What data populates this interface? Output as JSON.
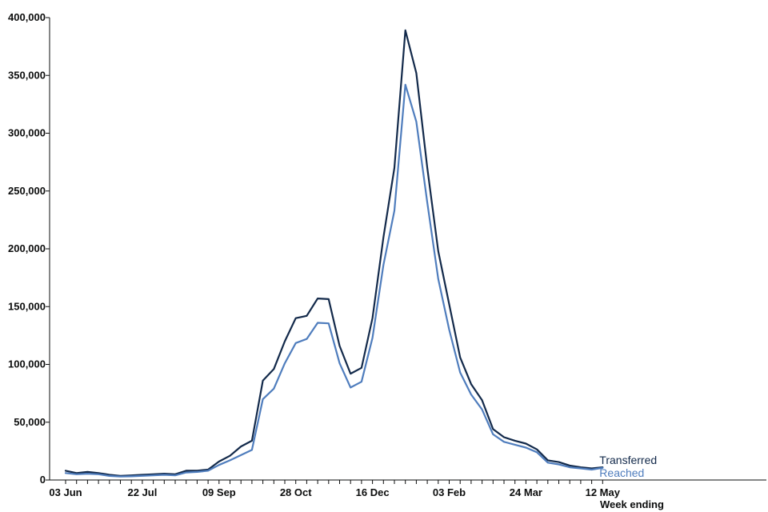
{
  "chart_data": {
    "type": "line",
    "title": "",
    "xlabel": "Week ending",
    "ylabel": "",
    "ylim": [
      0,
      400000
    ],
    "yticks": [
      0,
      50000,
      100000,
      150000,
      200000,
      250000,
      300000,
      350000,
      400000
    ],
    "ytick_labels": [
      "0",
      "50,000",
      "100,000",
      "150,000",
      "200,000",
      "250,000",
      "300,000",
      "350,000",
      "400,000"
    ],
    "xtick_labels": [
      "03 Jun",
      "22 Jul",
      "09 Sep",
      "28 Oct",
      "16 Dec",
      "03 Feb",
      "24 Mar",
      "12 May"
    ],
    "xtick_weeks": [
      0,
      7,
      14,
      21,
      28,
      35,
      42,
      49
    ],
    "legend_position": "end-of-lines",
    "grid": false,
    "x": [
      "03 Jun",
      "10 Jun",
      "17 Jun",
      "24 Jun",
      "01 Jul",
      "08 Jul",
      "15 Jul",
      "22 Jul",
      "29 Jul",
      "05 Aug",
      "12 Aug",
      "19 Aug",
      "26 Aug",
      "02 Sep",
      "09 Sep",
      "16 Sep",
      "23 Sep",
      "30 Sep",
      "07 Oct",
      "14 Oct",
      "21 Oct",
      "28 Oct",
      "04 Nov",
      "11 Nov",
      "18 Nov",
      "25 Nov",
      "02 Dec",
      "09 Dec",
      "16 Dec",
      "23 Dec",
      "30 Dec",
      "06 Jan",
      "13 Jan",
      "20 Jan",
      "27 Jan",
      "03 Feb",
      "10 Feb",
      "17 Feb",
      "24 Feb",
      "03 Mar",
      "10 Mar",
      "17 Mar",
      "24 Mar",
      "31 Mar",
      "07 Apr",
      "14 Apr",
      "21 Apr",
      "28 Apr",
      "05 May",
      "12 May"
    ],
    "series": [
      {
        "name": "Transferred",
        "color": "#12294a",
        "values": [
          8000,
          6000,
          7000,
          6000,
          4500,
          3500,
          4000,
          4500,
          5000,
          5500,
          5000,
          8000,
          8000,
          9000,
          16000,
          21000,
          29000,
          34000,
          86000,
          96000,
          120000,
          140000,
          142000,
          157000,
          156500,
          116000,
          92000,
          97000,
          140000,
          210000,
          270000,
          389000,
          352000,
          270000,
          198000,
          152000,
          106000,
          83000,
          69000,
          44000,
          37000,
          34000,
          31500,
          26500,
          17000,
          15500,
          12500,
          11000,
          10000,
          11000
        ]
      },
      {
        "name": "Reached",
        "color": "#4f7dbd",
        "values": [
          6000,
          5000,
          5500,
          5000,
          3500,
          3000,
          3200,
          3600,
          4000,
          4500,
          4000,
          6500,
          7000,
          8000,
          13000,
          17000,
          21500,
          26000,
          70000,
          79000,
          101000,
          118500,
          122000,
          136000,
          135500,
          101000,
          80000,
          85000,
          123000,
          186000,
          233000,
          342000,
          310000,
          240000,
          174000,
          130000,
          93000,
          74000,
          61000,
          39500,
          33000,
          30500,
          28000,
          24000,
          15000,
          13500,
          11000,
          10000,
          9000,
          10500
        ]
      }
    ]
  }
}
